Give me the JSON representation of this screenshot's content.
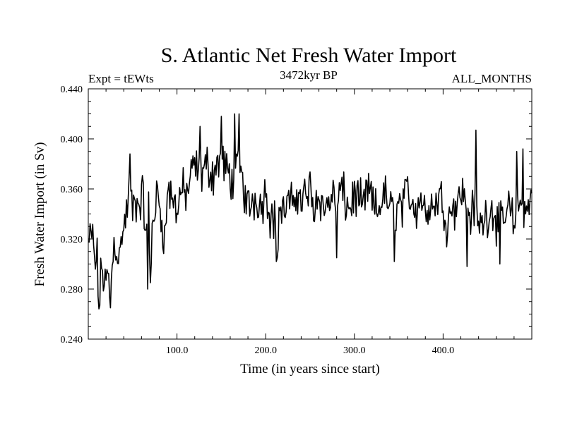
{
  "chart_data": {
    "type": "line",
    "title": "S. Atlantic Net Fresh Water Import",
    "subtitle_left": "Expt = tEWts",
    "subtitle_center": "3472kyr BP",
    "subtitle_right": "ALL_MONTHS",
    "xlabel": "Time (in years since start)",
    "ylabel": "Fresh Water Import (in Sv)",
    "xlim": [
      0,
      500
    ],
    "ylim": [
      0.24,
      0.44
    ],
    "x_ticks": [
      100,
      200,
      300,
      400
    ],
    "x_tick_labels": [
      "100.0",
      "200.0",
      "300.0",
      "400.0"
    ],
    "y_ticks": [
      0.24,
      0.28,
      0.32,
      0.36,
      0.4,
      0.44
    ],
    "y_tick_labels": [
      "0.240",
      "0.280",
      "0.320",
      "0.360",
      "0.400",
      "0.440"
    ],
    "grid": false,
    "series": [
      {
        "name": "Net Fresh Water Import",
        "color": "#000000",
        "x_start": 1,
        "x_step": 1,
        "anchor_x": [
          1,
          5,
          8,
          10,
          12,
          15,
          18,
          22,
          25,
          27,
          30,
          33,
          36,
          38,
          41,
          44,
          47,
          50,
          53,
          56,
          59,
          62,
          65,
          68,
          70,
          72,
          75,
          78,
          82,
          86,
          90,
          95,
          100,
          105,
          110,
          115,
          120,
          125,
          130,
          135,
          140,
          145,
          150,
          155,
          160,
          165,
          170,
          172,
          175,
          180,
          185,
          190,
          195,
          200,
          205,
          210,
          213,
          215,
          220,
          225,
          230,
          235,
          240,
          245,
          250,
          255,
          260,
          265,
          270,
          275,
          280,
          285,
          290,
          295,
          300,
          305,
          310,
          315,
          320,
          325,
          330,
          335,
          340,
          345,
          350,
          355,
          360,
          365,
          370,
          375,
          380,
          385,
          390,
          395,
          400,
          405,
          410,
          415,
          420,
          425,
          430,
          435,
          440,
          445,
          450,
          455,
          460,
          465,
          470,
          475,
          480,
          485,
          490,
          495,
          500
        ],
        "anchor_y": [
          0.318,
          0.32,
          0.3,
          0.305,
          0.262,
          0.3,
          0.285,
          0.29,
          0.272,
          0.3,
          0.32,
          0.31,
          0.305,
          0.325,
          0.33,
          0.345,
          0.365,
          0.34,
          0.35,
          0.345,
          0.35,
          0.355,
          0.32,
          0.345,
          0.28,
          0.33,
          0.345,
          0.355,
          0.34,
          0.32,
          0.36,
          0.35,
          0.345,
          0.36,
          0.355,
          0.365,
          0.38,
          0.37,
          0.375,
          0.38,
          0.37,
          0.38,
          0.385,
          0.375,
          0.37,
          0.365,
          0.38,
          0.375,
          0.36,
          0.345,
          0.35,
          0.355,
          0.345,
          0.36,
          0.34,
          0.335,
          0.305,
          0.345,
          0.34,
          0.35,
          0.345,
          0.36,
          0.35,
          0.355,
          0.36,
          0.345,
          0.36,
          0.34,
          0.35,
          0.355,
          0.345,
          0.36,
          0.35,
          0.345,
          0.355,
          0.35,
          0.345,
          0.36,
          0.35,
          0.34,
          0.35,
          0.355,
          0.345,
          0.34,
          0.35,
          0.345,
          0.36,
          0.35,
          0.345,
          0.355,
          0.34,
          0.35,
          0.345,
          0.355,
          0.35,
          0.33,
          0.35,
          0.345,
          0.36,
          0.35,
          0.34,
          0.345,
          0.33,
          0.335,
          0.34,
          0.345,
          0.335,
          0.33,
          0.34,
          0.345,
          0.33,
          0.345,
          0.35,
          0.34,
          0.355
        ],
        "noise_amplitude": 0.022,
        "spikes": [
          [
            67,
            0.28
          ],
          [
            70,
            0.285
          ],
          [
            47,
            0.388
          ],
          [
            126,
            0.41
          ],
          [
            150,
            0.418
          ],
          [
            165,
            0.42
          ],
          [
            170,
            0.42
          ],
          [
            212,
            0.302
          ],
          [
            213,
            0.305
          ],
          [
            280,
            0.305
          ],
          [
            345,
            0.302
          ],
          [
            427,
            0.298
          ],
          [
            437,
            0.407
          ],
          [
            464,
            0.3
          ],
          [
            483,
            0.39
          ],
          [
            490,
            0.392
          ]
        ]
      }
    ]
  }
}
